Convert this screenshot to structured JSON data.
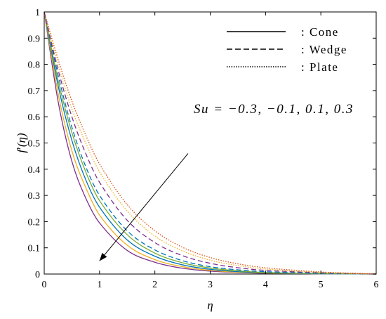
{
  "chart_data": {
    "type": "line",
    "xlabel": "η",
    "ylabel_main": "f",
    "ylabel_prime": "′",
    "ylabel_arg": "(η)",
    "xlim": [
      0,
      6
    ],
    "ylim": [
      0,
      1
    ],
    "x_ticks": [
      "0",
      "1",
      "2",
      "3",
      "4",
      "5",
      "6"
    ],
    "y_ticks": [
      "0",
      "0.1",
      "0.2",
      "0.3",
      "0.4",
      "0.5",
      "0.6",
      "0.7",
      "0.8",
      "0.9",
      "1"
    ],
    "grid": false,
    "legend_position": "top-right",
    "legend": [
      {
        "label": ": Cone",
        "style": "solid"
      },
      {
        "label": ": Wedge",
        "style": "dashed"
      },
      {
        "label": ": Plate",
        "style": "dotted"
      }
    ],
    "annotation": "Su = −0.3, −0.1, 0.1, 0.3",
    "annotation_arrow": {
      "from": [
        2.6,
        0.46
      ],
      "to": [
        1.0,
        0.05
      ]
    },
    "colors": [
      "#7e2f8e",
      "#edb120",
      "#0072bd",
      "#77ac30",
      "#a2142f",
      "#d95319"
    ],
    "series": [
      {
        "family": "Cone",
        "style": "solid",
        "color": "#7e2f8e",
        "x": [
          0,
          0.25,
          0.5,
          0.75,
          1,
          1.5,
          2,
          2.5,
          3,
          3.5,
          4,
          5,
          6
        ],
        "y": [
          1,
          0.66,
          0.43,
          0.29,
          0.195,
          0.09,
          0.045,
          0.022,
          0.011,
          0.006,
          0.003,
          0.001,
          0
        ]
      },
      {
        "family": "Cone",
        "style": "solid",
        "color": "#edb120",
        "x": [
          0,
          0.25,
          0.5,
          0.75,
          1,
          1.5,
          2,
          2.5,
          3,
          3.5,
          4,
          5,
          6
        ],
        "y": [
          1,
          0.69,
          0.47,
          0.33,
          0.225,
          0.11,
          0.055,
          0.028,
          0.014,
          0.007,
          0.004,
          0.001,
          0
        ]
      },
      {
        "family": "Cone",
        "style": "solid",
        "color": "#0072bd",
        "x": [
          0,
          0.25,
          0.5,
          0.75,
          1,
          1.5,
          2,
          2.5,
          3,
          3.5,
          4,
          5,
          6
        ],
        "y": [
          1,
          0.72,
          0.51,
          0.36,
          0.255,
          0.13,
          0.068,
          0.035,
          0.018,
          0.009,
          0.005,
          0.001,
          0
        ]
      },
      {
        "family": "Cone",
        "style": "solid",
        "color": "#77ac30",
        "x": [
          0,
          0.25,
          0.5,
          0.75,
          1,
          1.5,
          2,
          2.5,
          3,
          3.5,
          4,
          5,
          6
        ],
        "y": [
          1,
          0.74,
          0.54,
          0.39,
          0.28,
          0.15,
          0.08,
          0.043,
          0.023,
          0.012,
          0.006,
          0.002,
          0
        ]
      },
      {
        "family": "Wedge",
        "style": "dashed",
        "color": "#0072bd",
        "x": [
          0,
          0.25,
          0.5,
          0.75,
          1,
          1.5,
          2,
          2.5,
          3,
          3.5,
          4,
          5,
          6
        ],
        "y": [
          1,
          0.76,
          0.56,
          0.41,
          0.3,
          0.165,
          0.092,
          0.051,
          0.028,
          0.016,
          0.009,
          0.003,
          0
        ]
      },
      {
        "family": "Wedge",
        "style": "dashed",
        "color": "#7e2f8e",
        "x": [
          0,
          0.25,
          0.5,
          0.75,
          1,
          1.5,
          2,
          2.5,
          3,
          3.5,
          4,
          5,
          6
        ],
        "y": [
          1,
          0.78,
          0.6,
          0.46,
          0.35,
          0.205,
          0.12,
          0.07,
          0.041,
          0.024,
          0.014,
          0.005,
          0
        ]
      },
      {
        "family": "Plate",
        "style": "dotted",
        "color": "#edb120",
        "x": [
          0,
          0.25,
          0.5,
          0.75,
          1,
          1.5,
          2,
          2.5,
          3,
          3.5,
          4,
          5,
          6
        ],
        "y": [
          1,
          0.8,
          0.63,
          0.5,
          0.39,
          0.24,
          0.145,
          0.088,
          0.053,
          0.032,
          0.019,
          0.006,
          0
        ]
      },
      {
        "family": "Plate",
        "style": "dotted",
        "color": "#d95319",
        "x": [
          0,
          0.25,
          0.5,
          0.75,
          1,
          1.5,
          2,
          2.5,
          3,
          3.5,
          4,
          5,
          6
        ],
        "y": [
          1,
          0.82,
          0.66,
          0.53,
          0.42,
          0.265,
          0.165,
          0.102,
          0.063,
          0.039,
          0.024,
          0.008,
          0
        ]
      }
    ]
  }
}
